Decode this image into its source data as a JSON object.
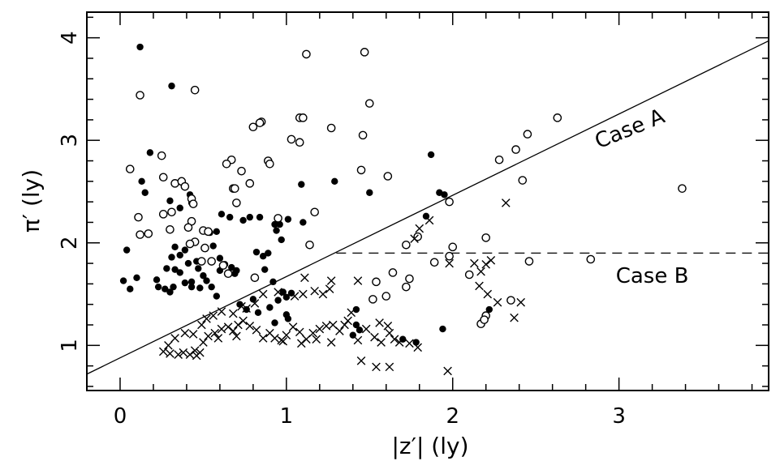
{
  "chart_data": {
    "type": "scatter",
    "xlabel": "|z′| (ly)",
    "ylabel": "π′ (ly)",
    "xlim": [
      -0.2,
      3.9
    ],
    "ylim": [
      0.56,
      4.25
    ],
    "x_ticks": [
      0,
      1,
      2,
      3
    ],
    "y_ticks": [
      1,
      2,
      3,
      4
    ],
    "x_tick_labels": [
      "0",
      "1",
      "2",
      "3"
    ],
    "y_tick_labels": [
      "1",
      "2",
      "3",
      "4"
    ],
    "grid": false,
    "annotations": [
      {
        "text": "Case A",
        "x": 3.08,
        "y": 3.05,
        "rotation": -22
      },
      {
        "text": "Case B",
        "x": 3.2,
        "y": 1.61,
        "rotation": 0
      }
    ],
    "lines": [
      {
        "label": "Case A",
        "style": "solid",
        "x": [
          -0.2,
          3.9
        ],
        "y": [
          0.72,
          3.97
        ]
      },
      {
        "label": "Case B",
        "style": "dashed",
        "x": [
          1.3,
          3.9
        ],
        "y": [
          1.9,
          1.9
        ]
      }
    ],
    "series": [
      {
        "marker": "filled-circle",
        "points": [
          [
            0.12,
            3.91
          ],
          [
            0.31,
            3.53
          ],
          [
            0.18,
            2.88
          ],
          [
            0.13,
            2.6
          ],
          [
            0.15,
            2.49
          ],
          [
            0.3,
            2.41
          ],
          [
            0.36,
            2.34
          ],
          [
            0.42,
            2.47
          ],
          [
            0.43,
            2.39
          ],
          [
            0.39,
            1.93
          ],
          [
            0.33,
            1.96
          ],
          [
            0.36,
            1.88
          ],
          [
            0.31,
            1.86
          ],
          [
            0.28,
            1.75
          ],
          [
            0.33,
            1.74
          ],
          [
            0.36,
            1.71
          ],
          [
            0.41,
            1.8
          ],
          [
            0.46,
            1.82
          ],
          [
            0.47,
            1.75
          ],
          [
            0.5,
            1.68
          ],
          [
            0.43,
            1.62
          ],
          [
            0.39,
            1.61
          ],
          [
            0.32,
            1.57
          ],
          [
            0.27,
            1.55
          ],
          [
            0.3,
            1.52
          ],
          [
            0.43,
            1.57
          ],
          [
            0.48,
            1.56
          ],
          [
            0.52,
            1.63
          ],
          [
            0.54,
            2.1
          ],
          [
            0.58,
            2.11
          ],
          [
            0.56,
            1.97
          ],
          [
            0.6,
            1.85
          ],
          [
            0.63,
            1.79
          ],
          [
            0.6,
            1.73
          ],
          [
            0.67,
            1.76
          ],
          [
            0.7,
            1.73
          ],
          [
            0.69,
            1.7
          ],
          [
            0.66,
            2.25
          ],
          [
            0.61,
            2.28
          ],
          [
            0.74,
            2.22
          ],
          [
            0.78,
            2.25
          ],
          [
            0.84,
            2.25
          ],
          [
            0.82,
            1.91
          ],
          [
            0.86,
            1.87
          ],
          [
            0.87,
            1.74
          ],
          [
            0.89,
            1.9
          ],
          [
            0.93,
            2.18
          ],
          [
            0.96,
            2.18
          ],
          [
            0.94,
            2.12
          ],
          [
            0.97,
            2.03
          ],
          [
            1.01,
            2.23
          ],
          [
            1.09,
            2.57
          ],
          [
            1.1,
            2.2
          ],
          [
            1.29,
            2.6
          ],
          [
            1.5,
            2.49
          ],
          [
            0.92,
            1.62
          ],
          [
            0.98,
            1.52
          ],
          [
            1.03,
            1.51
          ],
          [
            1.0,
            1.47
          ],
          [
            0.95,
            1.44
          ],
          [
            0.9,
            1.37
          ],
          [
            0.8,
            1.45
          ],
          [
            0.72,
            1.4
          ],
          [
            0.76,
            1.35
          ],
          [
            0.83,
            1.32
          ],
          [
            0.93,
            1.22
          ],
          [
            1.0,
            1.3
          ],
          [
            1.01,
            1.26
          ],
          [
            0.58,
            1.48
          ],
          [
            0.55,
            1.57
          ],
          [
            0.06,
            1.55
          ],
          [
            0.02,
            1.63
          ],
          [
            0.04,
            1.93
          ],
          [
            0.1,
            1.66
          ],
          [
            0.22,
            1.64
          ],
          [
            0.23,
            1.57
          ],
          [
            1.87,
            2.86
          ],
          [
            1.92,
            2.49
          ],
          [
            1.95,
            2.47
          ],
          [
            1.98,
            2.4
          ],
          [
            1.84,
            2.26
          ],
          [
            1.42,
            1.35
          ],
          [
            1.42,
            1.2
          ],
          [
            1.44,
            1.15
          ],
          [
            1.4,
            1.1
          ],
          [
            1.7,
            1.06
          ],
          [
            1.78,
            1.03
          ],
          [
            1.94,
            1.16
          ],
          [
            2.22,
            1.35
          ]
        ]
      },
      {
        "marker": "open-circle",
        "points": [
          [
            0.12,
            3.44
          ],
          [
            0.45,
            3.49
          ],
          [
            1.12,
            3.84
          ],
          [
            1.47,
            3.86
          ],
          [
            1.5,
            3.36
          ],
          [
            1.08,
            3.22
          ],
          [
            1.1,
            3.22
          ],
          [
            0.85,
            3.18
          ],
          [
            0.84,
            3.17
          ],
          [
            0.8,
            3.13
          ],
          [
            1.27,
            3.12
          ],
          [
            1.46,
            3.05
          ],
          [
            1.03,
            3.01
          ],
          [
            1.08,
            2.98
          ],
          [
            0.25,
            2.85
          ],
          [
            0.06,
            2.72
          ],
          [
            0.67,
            2.81
          ],
          [
            0.89,
            2.8
          ],
          [
            0.9,
            2.77
          ],
          [
            0.64,
            2.77
          ],
          [
            0.73,
            2.7
          ],
          [
            1.45,
            2.71
          ],
          [
            0.26,
            2.64
          ],
          [
            0.33,
            2.58
          ],
          [
            0.37,
            2.6
          ],
          [
            0.39,
            2.55
          ],
          [
            0.78,
            2.58
          ],
          [
            0.68,
            2.53
          ],
          [
            0.69,
            2.53
          ],
          [
            1.61,
            2.65
          ],
          [
            0.43,
            2.43
          ],
          [
            0.44,
            2.38
          ],
          [
            0.7,
            2.39
          ],
          [
            0.26,
            2.28
          ],
          [
            0.31,
            2.3
          ],
          [
            0.11,
            2.25
          ],
          [
            0.95,
            2.24
          ],
          [
            0.43,
            2.21
          ],
          [
            0.5,
            2.12
          ],
          [
            0.41,
            2.15
          ],
          [
            0.3,
            2.13
          ],
          [
            0.53,
            2.11
          ],
          [
            1.17,
            2.3
          ],
          [
            0.17,
            2.09
          ],
          [
            0.12,
            2.08
          ],
          [
            0.45,
            2.01
          ],
          [
            0.42,
            1.99
          ],
          [
            1.14,
            1.98
          ],
          [
            0.51,
            1.95
          ],
          [
            1.72,
            1.98
          ],
          [
            1.79,
            2.06
          ],
          [
            1.98,
            2.4
          ],
          [
            2.0,
            1.96
          ],
          [
            1.98,
            1.87
          ],
          [
            2.2,
            2.05
          ],
          [
            2.28,
            2.81
          ],
          [
            2.38,
            2.91
          ],
          [
            2.45,
            3.06
          ],
          [
            2.63,
            3.22
          ],
          [
            2.42,
            2.61
          ],
          [
            2.46,
            1.82
          ],
          [
            2.83,
            1.84
          ],
          [
            3.38,
            2.53
          ],
          [
            0.55,
            1.82
          ],
          [
            0.62,
            1.78
          ],
          [
            0.65,
            1.7
          ],
          [
            0.81,
            1.66
          ],
          [
            1.64,
            1.71
          ],
          [
            1.74,
            1.65
          ],
          [
            1.72,
            1.57
          ],
          [
            1.54,
            1.62
          ],
          [
            1.6,
            1.48
          ],
          [
            1.52,
            1.45
          ],
          [
            2.1,
            1.69
          ],
          [
            2.2,
            1.29
          ],
          [
            2.17,
            1.21
          ],
          [
            2.19,
            1.25
          ],
          [
            2.35,
            1.44
          ],
          [
            0.49,
            1.82
          ],
          [
            1.89,
            1.81
          ]
        ]
      },
      {
        "marker": "cross",
        "points": [
          [
            2.32,
            2.39
          ],
          [
            1.86,
            2.22
          ],
          [
            1.8,
            2.14
          ],
          [
            1.77,
            2.04
          ],
          [
            2.23,
            1.83
          ],
          [
            2.2,
            1.79
          ],
          [
            2.17,
            1.72
          ],
          [
            2.13,
            1.8
          ],
          [
            1.98,
            1.8
          ],
          [
            2.16,
            1.58
          ],
          [
            2.21,
            1.5
          ],
          [
            2.27,
            1.42
          ],
          [
            2.41,
            1.42
          ],
          [
            2.37,
            1.27
          ],
          [
            1.11,
            1.66
          ],
          [
            1.27,
            1.63
          ],
          [
            1.43,
            1.63
          ],
          [
            1.26,
            1.55
          ],
          [
            1.22,
            1.5
          ],
          [
            1.17,
            1.53
          ],
          [
            1.1,
            1.5
          ],
          [
            1.05,
            1.48
          ],
          [
            0.95,
            1.52
          ],
          [
            0.86,
            1.5
          ],
          [
            0.81,
            1.41
          ],
          [
            0.76,
            1.36
          ],
          [
            0.73,
            1.38
          ],
          [
            0.68,
            1.31
          ],
          [
            0.61,
            1.33
          ],
          [
            0.56,
            1.29
          ],
          [
            0.52,
            1.26
          ],
          [
            0.49,
            1.2
          ],
          [
            0.44,
            1.11
          ],
          [
            0.39,
            1.12
          ],
          [
            0.33,
            1.07
          ],
          [
            0.29,
            1.0
          ],
          [
            0.26,
            0.94
          ],
          [
            0.3,
            0.92
          ],
          [
            0.35,
            0.91
          ],
          [
            0.38,
            0.93
          ],
          [
            0.42,
            0.91
          ],
          [
            0.45,
            0.95
          ],
          [
            0.48,
            0.93
          ],
          [
            0.46,
            0.9
          ],
          [
            0.5,
            1.03
          ],
          [
            0.53,
            1.09
          ],
          [
            0.57,
            1.12
          ],
          [
            0.61,
            1.16
          ],
          [
            0.65,
            1.18
          ],
          [
            0.68,
            1.14
          ],
          [
            0.71,
            1.2
          ],
          [
            0.74,
            1.24
          ],
          [
            0.78,
            1.19
          ],
          [
            0.82,
            1.15
          ],
          [
            0.86,
            1.07
          ],
          [
            0.9,
            1.12
          ],
          [
            0.93,
            1.07
          ],
          [
            0.97,
            1.05
          ],
          [
            1.0,
            1.1
          ],
          [
            1.04,
            1.18
          ],
          [
            1.08,
            1.13
          ],
          [
            1.12,
            1.06
          ],
          [
            1.16,
            1.12
          ],
          [
            1.2,
            1.16
          ],
          [
            1.24,
            1.19
          ],
          [
            1.28,
            1.2
          ],
          [
            1.32,
            1.14
          ],
          [
            1.35,
            1.2
          ],
          [
            1.37,
            1.24
          ],
          [
            1.39,
            1.32
          ],
          [
            1.43,
            1.05
          ],
          [
            1.48,
            1.16
          ],
          [
            1.53,
            1.08
          ],
          [
            1.57,
            1.03
          ],
          [
            1.62,
            1.12
          ],
          [
            1.65,
            1.06
          ],
          [
            1.68,
            1.03
          ],
          [
            1.74,
            1.02
          ],
          [
            1.79,
            0.98
          ],
          [
            1.45,
            0.85
          ],
          [
            1.54,
            0.79
          ],
          [
            1.62,
            0.79
          ],
          [
            1.97,
            0.75
          ],
          [
            1.56,
            1.22
          ],
          [
            1.61,
            1.19
          ],
          [
            1.27,
            1.03
          ],
          [
            1.18,
            1.06
          ],
          [
            1.09,
            1.02
          ],
          [
            0.98,
            1.04
          ],
          [
            0.7,
            1.09
          ],
          [
            0.59,
            1.07
          ]
        ]
      }
    ]
  }
}
